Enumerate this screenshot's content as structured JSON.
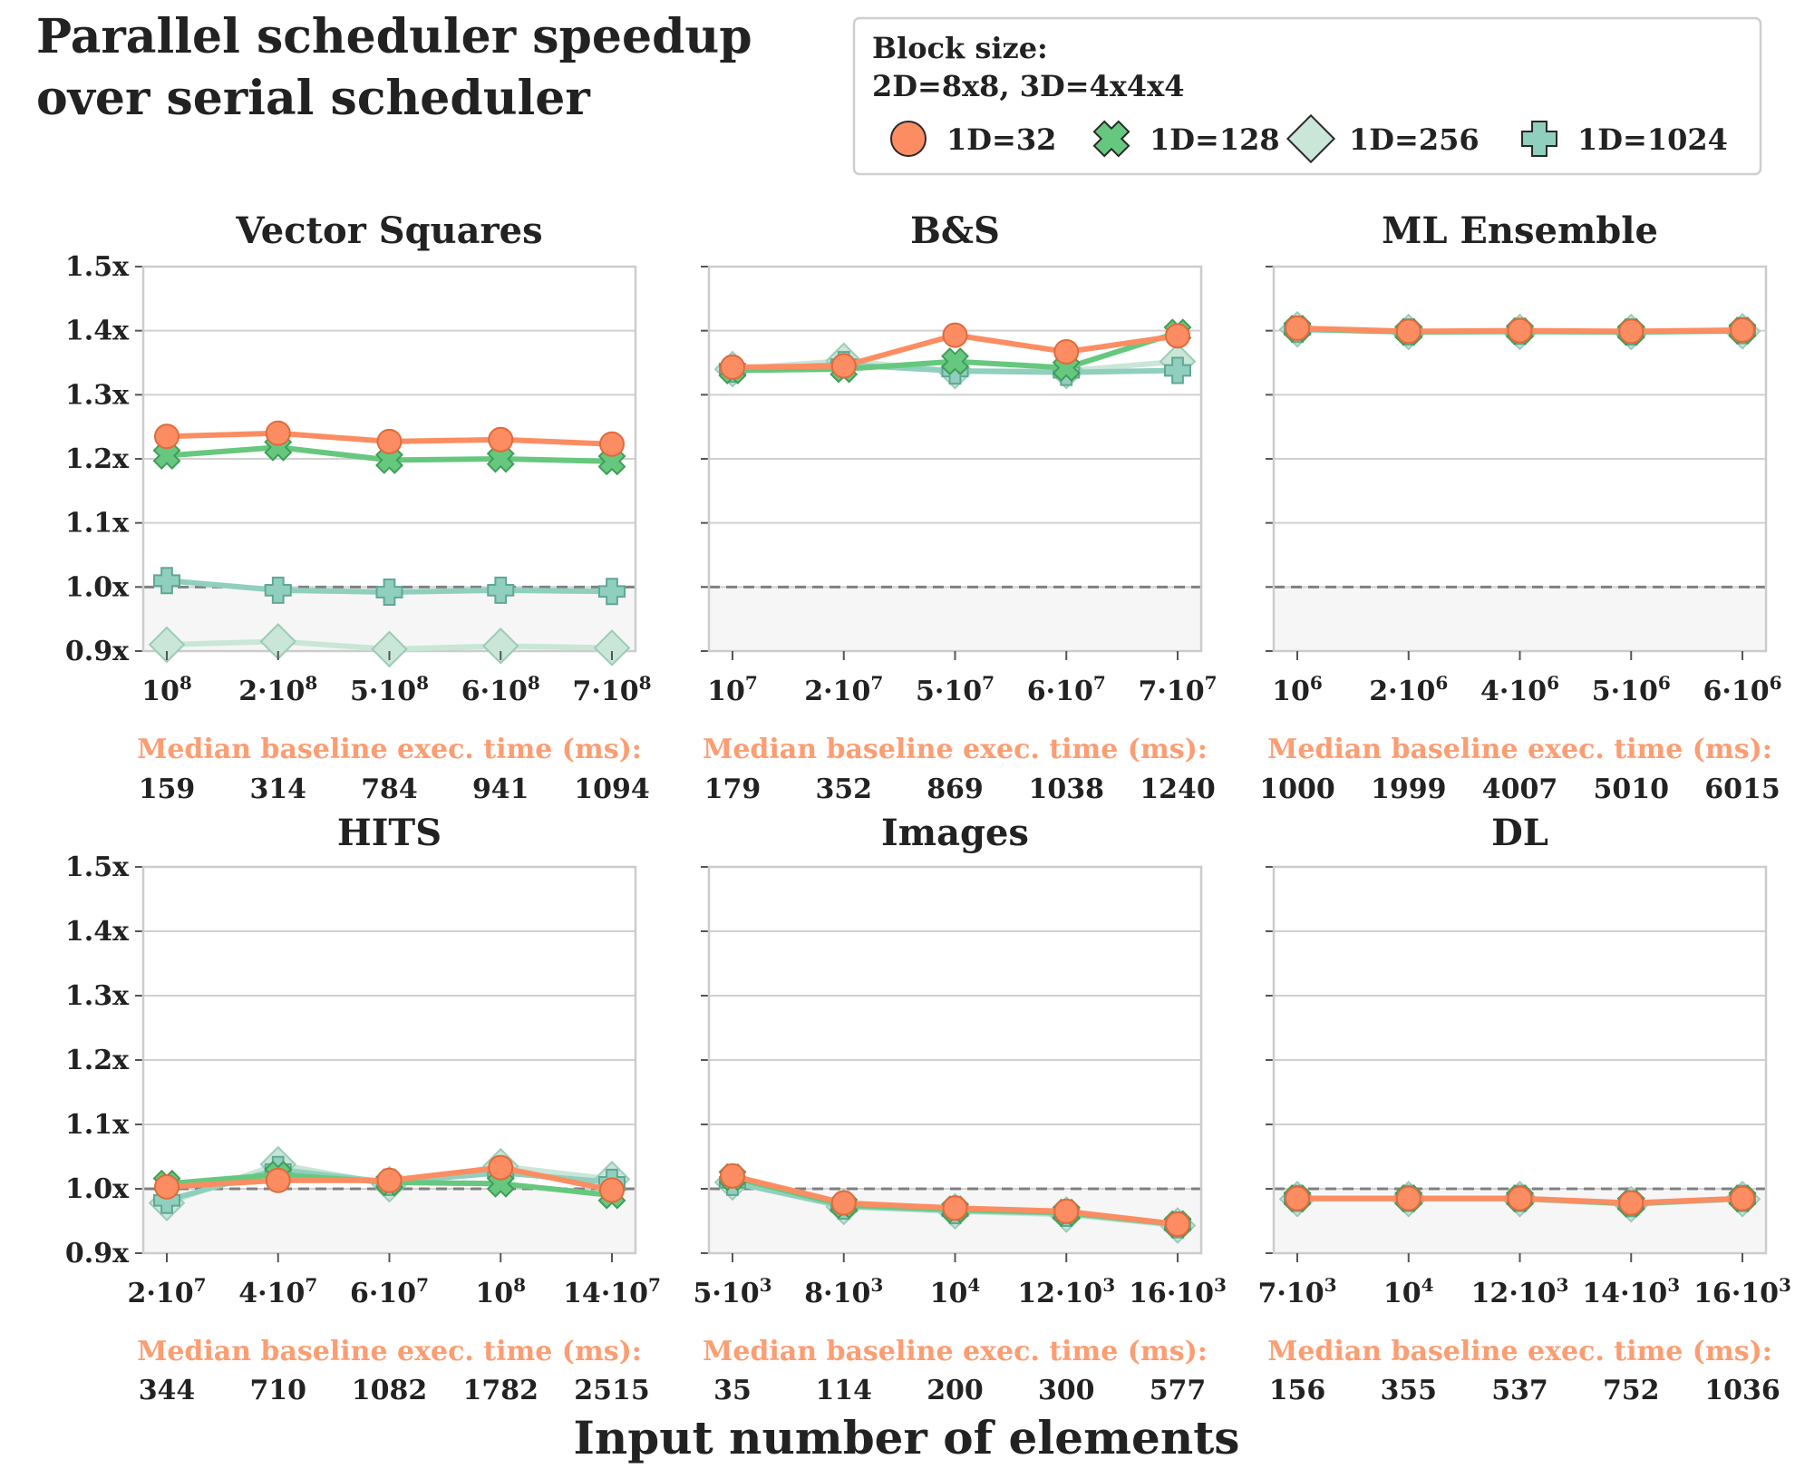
{
  "title_lines": [
    "Parallel scheduler speedup",
    "over serial scheduler"
  ],
  "xlabel": "Input number of elements",
  "baseline_label": "Median baseline exec. time (ms):",
  "legend": {
    "title_lines": [
      "Block size:",
      "2D=8x8, 3D=4x4x4"
    ],
    "entries": [
      "1D=32",
      "1D=128",
      "1D=256",
      "1D=1024"
    ]
  },
  "colors": {
    "1D=32": "#fc8d62",
    "1D=128": "#66c87e",
    "1D=256": "#c9e6d8",
    "1D=1024": "#90cfbd",
    "reference_line": "#808080",
    "below_one_shade": "#f6f6f6",
    "grid": "#d0d0d0",
    "baseline_label": "#fc9d72"
  },
  "markers": {
    "1D=32": "circle",
    "1D=128": "x",
    "1D=256": "diamond",
    "1D=1024": "plus"
  },
  "chart_data": [
    {
      "type": "line",
      "title": "Vector Squares",
      "categories": [
        {
          "base": "10",
          "exp": "8",
          "mult": ""
        },
        {
          "base": "10",
          "exp": "8",
          "mult": "2"
        },
        {
          "base": "10",
          "exp": "8",
          "mult": "5"
        },
        {
          "base": "10",
          "exp": "8",
          "mult": "6"
        },
        {
          "base": "10",
          "exp": "8",
          "mult": "7"
        }
      ],
      "ylim": [
        0.9,
        1.5
      ],
      "yticks": [
        "0.9x",
        "1.0x",
        "1.1x",
        "1.2x",
        "1.3x",
        "1.4x",
        "1.5x"
      ],
      "reference_y": 1.0,
      "baseline_ms": [
        "159",
        "314",
        "784",
        "941",
        "1094"
      ],
      "series": [
        {
          "name": "1D=32",
          "values": [
            1.235,
            1.24,
            1.227,
            1.23,
            1.223
          ]
        },
        {
          "name": "1D=128",
          "values": [
            1.205,
            1.218,
            1.198,
            1.2,
            1.196
          ]
        },
        {
          "name": "1D=256",
          "values": [
            0.91,
            0.915,
            0.903,
            0.908,
            0.905
          ]
        },
        {
          "name": "1D=1024",
          "values": [
            1.01,
            0.995,
            0.992,
            0.995,
            0.993
          ]
        }
      ]
    },
    {
      "type": "line",
      "title": "B&S",
      "categories": [
        {
          "base": "10",
          "exp": "7",
          "mult": ""
        },
        {
          "base": "10",
          "exp": "7",
          "mult": "2"
        },
        {
          "base": "10",
          "exp": "7",
          "mult": "5"
        },
        {
          "base": "10",
          "exp": "7",
          "mult": "6"
        },
        {
          "base": "10",
          "exp": "7",
          "mult": "7"
        }
      ],
      "ylim": [
        0.9,
        1.5
      ],
      "yticks": [
        "0.9x",
        "1.0x",
        "1.1x",
        "1.2x",
        "1.3x",
        "1.4x",
        "1.5x"
      ],
      "reference_y": 1.0,
      "baseline_ms": [
        "179",
        "352",
        "869",
        "1038",
        "1240"
      ],
      "series": [
        {
          "name": "1D=32",
          "values": [
            1.343,
            1.345,
            1.393,
            1.367,
            1.392
          ]
        },
        {
          "name": "1D=128",
          "values": [
            1.338,
            1.34,
            1.352,
            1.342,
            1.397
          ]
        },
        {
          "name": "1D=256",
          "values": [
            1.34,
            1.353,
            1.337,
            1.337,
            1.352
          ]
        },
        {
          "name": "1D=1024",
          "values": [
            1.34,
            1.347,
            1.337,
            1.335,
            1.338
          ]
        }
      ]
    },
    {
      "type": "line",
      "title": "ML Ensemble",
      "categories": [
        {
          "base": "10",
          "exp": "6",
          "mult": ""
        },
        {
          "base": "10",
          "exp": "6",
          "mult": "2"
        },
        {
          "base": "10",
          "exp": "6",
          "mult": "4"
        },
        {
          "base": "10",
          "exp": "6",
          "mult": "5"
        },
        {
          "base": "10",
          "exp": "6",
          "mult": "6"
        }
      ],
      "ylim": [
        0.9,
        1.5
      ],
      "yticks": [
        "0.9x",
        "1.0x",
        "1.1x",
        "1.2x",
        "1.3x",
        "1.4x",
        "1.5x"
      ],
      "reference_y": 1.0,
      "baseline_ms": [
        "1000",
        "1999",
        "4007",
        "5010",
        "6015"
      ],
      "series": [
        {
          "name": "1D=32",
          "values": [
            1.404,
            1.399,
            1.4,
            1.399,
            1.401
          ]
        },
        {
          "name": "1D=128",
          "values": [
            1.403,
            1.398,
            1.399,
            1.398,
            1.4
          ]
        },
        {
          "name": "1D=256",
          "values": [
            1.402,
            1.398,
            1.398,
            1.398,
            1.399
          ]
        },
        {
          "name": "1D=1024",
          "values": [
            1.402,
            1.398,
            1.399,
            1.398,
            1.4
          ]
        }
      ]
    },
    {
      "type": "line",
      "title": "HITS",
      "categories": [
        {
          "base": "10",
          "exp": "7",
          "mult": "2"
        },
        {
          "base": "10",
          "exp": "7",
          "mult": "4"
        },
        {
          "base": "10",
          "exp": "7",
          "mult": "6"
        },
        {
          "base": "10",
          "exp": "8",
          "mult": ""
        },
        {
          "base": "10",
          "exp": "7",
          "mult": "14"
        }
      ],
      "ylim": [
        0.9,
        1.5
      ],
      "yticks": [
        "0.9x",
        "1.0x",
        "1.1x",
        "1.2x",
        "1.3x",
        "1.4x",
        "1.5x"
      ],
      "reference_y": 1.0,
      "baseline_ms": [
        "344",
        "710",
        "1082",
        "1782",
        "2515"
      ],
      "series": [
        {
          "name": "1D=32",
          "values": [
            1.003,
            1.013,
            1.013,
            1.033,
            0.998
          ]
        },
        {
          "name": "1D=128",
          "values": [
            1.008,
            1.022,
            1.01,
            1.008,
            0.99
          ]
        },
        {
          "name": "1D=256",
          "values": [
            0.978,
            1.038,
            1.007,
            1.035,
            1.015
          ]
        },
        {
          "name": "1D=1024",
          "values": [
            0.982,
            1.03,
            1.01,
            1.025,
            1.01
          ]
        }
      ]
    },
    {
      "type": "line",
      "title": "Images",
      "categories": [
        {
          "base": "10",
          "exp": "3",
          "mult": "5"
        },
        {
          "base": "10",
          "exp": "3",
          "mult": "8"
        },
        {
          "base": "10",
          "exp": "4",
          "mult": ""
        },
        {
          "base": "10",
          "exp": "3",
          "mult": "12"
        },
        {
          "base": "10",
          "exp": "3",
          "mult": "16"
        }
      ],
      "ylim": [
        0.9,
        1.5
      ],
      "yticks": [
        "0.9x",
        "1.0x",
        "1.1x",
        "1.2x",
        "1.3x",
        "1.4x",
        "1.5x"
      ],
      "reference_y": 1.0,
      "baseline_ms": [
        "35",
        "114",
        "200",
        "300",
        "577"
      ],
      "series": [
        {
          "name": "1D=32",
          "values": [
            1.02,
            0.978,
            0.97,
            0.965,
            0.945
          ]
        },
        {
          "name": "1D=128",
          "values": [
            1.018,
            0.975,
            0.968,
            0.963,
            0.945
          ]
        },
        {
          "name": "1D=256",
          "values": [
            1.01,
            0.972,
            0.965,
            0.96,
            0.943
          ]
        },
        {
          "name": "1D=1024",
          "values": [
            1.01,
            0.973,
            0.966,
            0.962,
            0.944
          ]
        }
      ]
    },
    {
      "type": "line",
      "title": "DL",
      "categories": [
        {
          "base": "10",
          "exp": "3",
          "mult": "7"
        },
        {
          "base": "10",
          "exp": "4",
          "mult": ""
        },
        {
          "base": "10",
          "exp": "3",
          "mult": "12"
        },
        {
          "base": "10",
          "exp": "3",
          "mult": "14"
        },
        {
          "base": "10",
          "exp": "3",
          "mult": "16"
        }
      ],
      "ylim": [
        0.9,
        1.5
      ],
      "yticks": [
        "0.9x",
        "1.0x",
        "1.1x",
        "1.2x",
        "1.3x",
        "1.4x",
        "1.5x"
      ],
      "reference_y": 1.0,
      "baseline_ms": [
        "156",
        "355",
        "537",
        "752",
        "1036"
      ],
      "series": [
        {
          "name": "1D=32",
          "values": [
            0.985,
            0.985,
            0.985,
            0.978,
            0.985
          ]
        },
        {
          "name": "1D=128",
          "values": [
            0.985,
            0.985,
            0.985,
            0.977,
            0.985
          ]
        },
        {
          "name": "1D=256",
          "values": [
            0.984,
            0.984,
            0.984,
            0.976,
            0.984
          ]
        },
        {
          "name": "1D=1024",
          "values": [
            0.985,
            0.985,
            0.985,
            0.977,
            0.985
          ]
        }
      ]
    }
  ]
}
